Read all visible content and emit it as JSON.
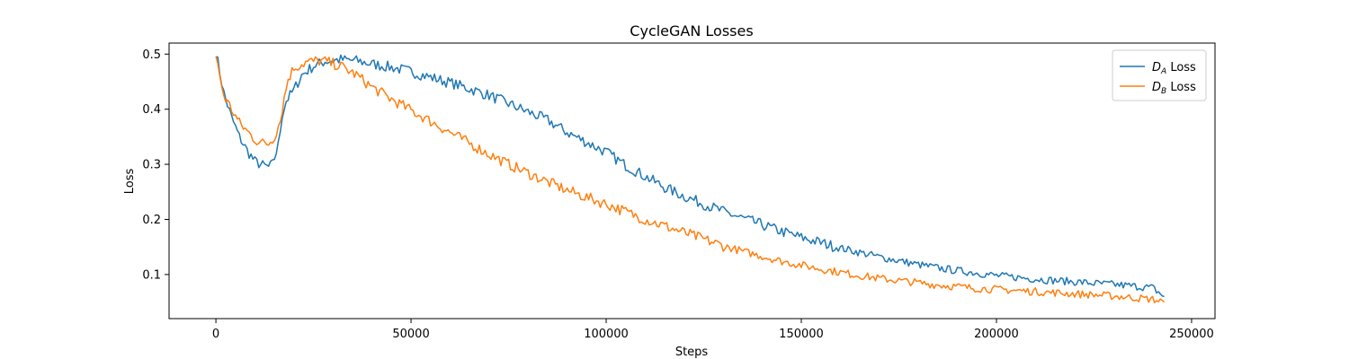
{
  "chart_data": {
    "type": "line",
    "title": "CycleGAN  Losses",
    "xlabel": "Steps",
    "ylabel": "Loss",
    "xlim": [
      -12000,
      256000
    ],
    "ylim": [
      0.02,
      0.52
    ],
    "xticks": [
      0,
      50000,
      100000,
      150000,
      200000,
      250000
    ],
    "yticks": [
      0.1,
      0.2,
      0.3,
      0.4,
      0.5
    ],
    "grid": false,
    "legend_position": "top-right",
    "series": [
      {
        "name": "D",
        "subscript": "A",
        "name_suffix": " Loss",
        "color": "#1f77b4",
        "points": [
          [
            0,
            0.505
          ],
          [
            2000,
            0.43
          ],
          [
            4000,
            0.385
          ],
          [
            6000,
            0.35
          ],
          [
            8000,
            0.325
          ],
          [
            10000,
            0.305
          ],
          [
            12000,
            0.298
          ],
          [
            13500,
            0.295
          ],
          [
            14500,
            0.3
          ],
          [
            16000,
            0.335
          ],
          [
            17000,
            0.39
          ],
          [
            18000,
            0.415
          ],
          [
            20000,
            0.435
          ],
          [
            22000,
            0.462
          ],
          [
            25000,
            0.478
          ],
          [
            28000,
            0.487
          ],
          [
            32000,
            0.49
          ],
          [
            36000,
            0.488
          ],
          [
            40000,
            0.482
          ],
          [
            45000,
            0.476
          ],
          [
            50000,
            0.468
          ],
          [
            55000,
            0.458
          ],
          [
            60000,
            0.448
          ],
          [
            65000,
            0.437
          ],
          [
            70000,
            0.425
          ],
          [
            75000,
            0.41
          ],
          [
            80000,
            0.395
          ],
          [
            85000,
            0.38
          ],
          [
            90000,
            0.358
          ],
          [
            95000,
            0.34
          ],
          [
            100000,
            0.322
          ],
          [
            105000,
            0.298
          ],
          [
            110000,
            0.278
          ],
          [
            115000,
            0.258
          ],
          [
            120000,
            0.242
          ],
          [
            125000,
            0.228
          ],
          [
            130000,
            0.214
          ],
          [
            135000,
            0.202
          ],
          [
            140000,
            0.19
          ],
          [
            145000,
            0.178
          ],
          [
            150000,
            0.167
          ],
          [
            155000,
            0.158
          ],
          [
            160000,
            0.148
          ],
          [
            165000,
            0.14
          ],
          [
            170000,
            0.132
          ],
          [
            175000,
            0.125
          ],
          [
            180000,
            0.118
          ],
          [
            185000,
            0.112
          ],
          [
            190000,
            0.107
          ],
          [
            195000,
            0.103
          ],
          [
            200000,
            0.098
          ],
          [
            205000,
            0.095
          ],
          [
            210000,
            0.092
          ],
          [
            215000,
            0.089
          ],
          [
            220000,
            0.087
          ],
          [
            225000,
            0.084
          ],
          [
            230000,
            0.082
          ],
          [
            235000,
            0.079
          ],
          [
            240000,
            0.076
          ],
          [
            243000,
            0.06
          ]
        ]
      },
      {
        "name": "D",
        "subscript": "B",
        "name_suffix": " Loss",
        "color": "#ff7f0e",
        "points": [
          [
            0,
            0.495
          ],
          [
            2000,
            0.425
          ],
          [
            4000,
            0.4
          ],
          [
            6000,
            0.375
          ],
          [
            8000,
            0.36
          ],
          [
            10000,
            0.345
          ],
          [
            12000,
            0.338
          ],
          [
            13500,
            0.338
          ],
          [
            15000,
            0.35
          ],
          [
            16500,
            0.38
          ],
          [
            17500,
            0.42
          ],
          [
            18500,
            0.455
          ],
          [
            20000,
            0.475
          ],
          [
            23000,
            0.485
          ],
          [
            26000,
            0.488
          ],
          [
            28000,
            0.487
          ],
          [
            32000,
            0.478
          ],
          [
            36000,
            0.462
          ],
          [
            40000,
            0.44
          ],
          [
            45000,
            0.418
          ],
          [
            50000,
            0.398
          ],
          [
            55000,
            0.378
          ],
          [
            60000,
            0.358
          ],
          [
            65000,
            0.338
          ],
          [
            70000,
            0.318
          ],
          [
            75000,
            0.3
          ],
          [
            80000,
            0.284
          ],
          [
            85000,
            0.268
          ],
          [
            90000,
            0.253
          ],
          [
            95000,
            0.24
          ],
          [
            100000,
            0.228
          ],
          [
            105000,
            0.214
          ],
          [
            110000,
            0.2
          ],
          [
            115000,
            0.188
          ],
          [
            120000,
            0.176
          ],
          [
            125000,
            0.164
          ],
          [
            130000,
            0.152
          ],
          [
            135000,
            0.142
          ],
          [
            140000,
            0.133
          ],
          [
            145000,
            0.124
          ],
          [
            150000,
            0.117
          ],
          [
            155000,
            0.11
          ],
          [
            160000,
            0.104
          ],
          [
            165000,
            0.098
          ],
          [
            170000,
            0.093
          ],
          [
            175000,
            0.089
          ],
          [
            180000,
            0.085
          ],
          [
            185000,
            0.081
          ],
          [
            190000,
            0.078
          ],
          [
            195000,
            0.075
          ],
          [
            200000,
            0.073
          ],
          [
            205000,
            0.071
          ],
          [
            210000,
            0.069
          ],
          [
            215000,
            0.067
          ],
          [
            220000,
            0.065
          ],
          [
            225000,
            0.063
          ],
          [
            230000,
            0.061
          ],
          [
            235000,
            0.058
          ],
          [
            240000,
            0.055
          ],
          [
            243000,
            0.05
          ]
        ]
      }
    ]
  }
}
